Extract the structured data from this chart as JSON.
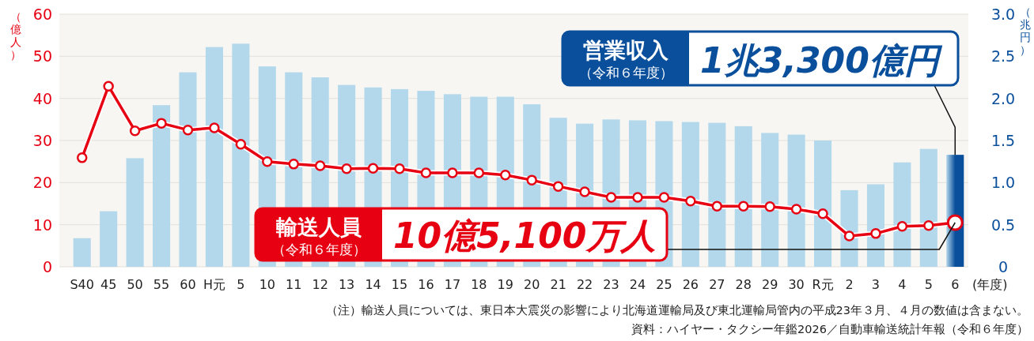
{
  "chart_data": {
    "type": "bar",
    "categories": [
      "S40",
      "45",
      "50",
      "55",
      "60",
      "H元",
      "5",
      "10",
      "11",
      "12",
      "13",
      "14",
      "15",
      "16",
      "17",
      "18",
      "19",
      "20",
      "21",
      "22",
      "23",
      "24",
      "25",
      "26",
      "27",
      "28",
      "29",
      "30",
      "R元",
      "2",
      "3",
      "4",
      "5",
      "6"
    ],
    "series": [
      {
        "axis": "y2",
        "color": "#b3d8ec",
        "colors": [
          "#b3d8ec",
          "#b3d8ec",
          "#b3d8ec",
          "#b3d8ec",
          "#b3d8ec",
          "#b3d8ec",
          "#b3d8ec",
          "#b3d8ec",
          "#b3d8ec",
          "#b3d8ec",
          "#b3d8ec",
          "#b3d8ec",
          "#b3d8ec",
          "#b3d8ec",
          "#b3d8ec",
          "#b3d8ec",
          "#b3d8ec",
          "#b3d8ec",
          "#b3d8ec",
          "#b3d8ec",
          "#b3d8ec",
          "#b3d8ec",
          "#b3d8ec",
          "#b3d8ec",
          "#b3d8ec",
          "#b3d8ec",
          "#b3d8ec",
          "#b3d8ec",
          "#b3d8ec",
          "#b3d8ec",
          "#b3d8ec",
          "#b3d8ec",
          "#b3d8ec",
          "#0a4f9c"
        ],
        "values": [
          0.34,
          0.66,
          1.29,
          1.92,
          2.31,
          2.61,
          2.65,
          2.38,
          2.31,
          2.25,
          2.16,
          2.13,
          2.11,
          2.09,
          2.05,
          2.02,
          2.02,
          1.93,
          1.77,
          1.7,
          1.75,
          1.74,
          1.73,
          1.72,
          1.71,
          1.67,
          1.59,
          1.57,
          1.5,
          0.91,
          0.98,
          1.24,
          1.4,
          1.33
        ]
      },
      {
        "type": "line",
        "axis": "y",
        "color": "#e60012",
        "marker": "circle",
        "line_style": "solid",
        "values": [
          25.9,
          42.9,
          32.3,
          34.1,
          32.5,
          33.0,
          29.1,
          25.0,
          24.4,
          24.0,
          23.3,
          23.4,
          23.3,
          22.3,
          22.3,
          22.3,
          21.8,
          20.6,
          19.1,
          17.8,
          16.5,
          16.5,
          16.5,
          15.6,
          14.4,
          14.4,
          14.3,
          13.7,
          12.6,
          7.3,
          7.9,
          9.6,
          9.8,
          10.5
        ]
      }
    ],
    "ylabel": "（億人）",
    "y2label": "（兆円）",
    "xlabel": "(年度)",
    "ylim": [
      0,
      60
    ],
    "yticks": [
      0,
      10,
      20,
      30,
      40,
      50,
      60
    ],
    "y2lim": [
      0,
      3
    ],
    "y2ticks": [
      0,
      {
        "value": 0.5,
        "label": "0.5"
      },
      {
        "value": 1,
        "label": "1.0"
      },
      {
        "value": 1.5,
        "label": "1.5"
      },
      {
        "value": 2,
        "label": "2.0"
      },
      {
        "value": 2.5,
        "label": "2.5"
      },
      {
        "value": 3,
        "label": "3.0"
      }
    ],
    "grid": "y",
    "annotations": [
      "営業収入（令和６年度）",
      {
        "text": "1兆3,300億円",
        "x": "6",
        "y": 26.6
      },
      "輸送人員（令和６年度）",
      {
        "text": "10億5,100万人",
        "x": "6",
        "y": 10.5
      },
      "（注）輸送人員については、東日本大震災の影響により北海道運輸局及び東北運輸局管内の平成23年３月、４月の数値は含まない。",
      "資料：ハイヤー・タクシー年鑑2026／自動車輸送統計年報（令和６年度）"
    ]
  }
}
